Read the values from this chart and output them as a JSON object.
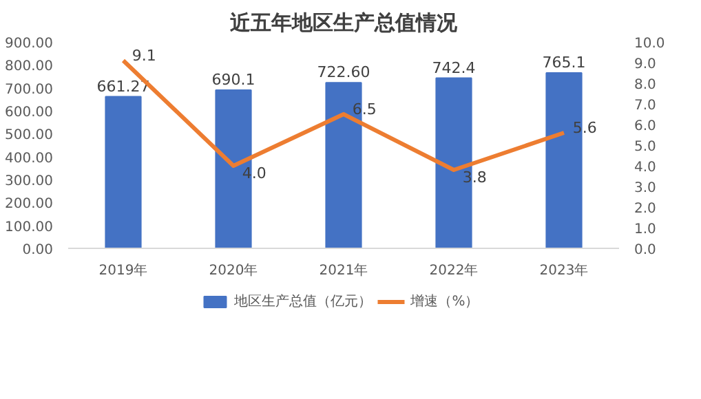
{
  "chart_data": {
    "type": "bar",
    "title": "近五年地区生产总值情况",
    "categories": [
      "2019年",
      "2020年",
      "2021年",
      "2022年",
      "2023年"
    ],
    "series": [
      {
        "name": "地区生产总值（亿元）",
        "color": "#4472c4",
        "values": [
          661.27,
          690.1,
          722.6,
          742.4,
          765.1
        ],
        "value_labels": [
          "661.27",
          "690.1",
          "722.60",
          "742.4",
          "765.1"
        ]
      },
      {
        "name": "增速（%）",
        "type": "line",
        "axis": "y2",
        "color": "#ed7d31",
        "values": [
          9.1,
          4.0,
          6.5,
          3.8,
          5.6
        ],
        "value_labels": [
          "9.1",
          "4.0",
          "6.5",
          "3.8",
          "5.6"
        ]
      }
    ],
    "ylim": [
      0,
      900
    ],
    "yticks": [
      {
        "value": 0,
        "label": "0.00"
      },
      {
        "value": 100,
        "label": "100.00"
      },
      {
        "value": 200,
        "label": "200.00"
      },
      {
        "value": 300,
        "label": "300.00"
      },
      {
        "value": 400,
        "label": "400.00"
      },
      {
        "value": 500,
        "label": "500.00"
      },
      {
        "value": 600,
        "label": "600.00"
      },
      {
        "value": 700,
        "label": "700.00"
      },
      {
        "value": 800,
        "label": "800.00"
      },
      {
        "value": 900,
        "label": "900.00"
      }
    ],
    "y2lim": [
      0,
      10
    ],
    "y2ticks": [
      {
        "value": 0,
        "label": "0.0"
      },
      {
        "value": 1,
        "label": "1.0"
      },
      {
        "value": 2,
        "label": "2.0"
      },
      {
        "value": 3,
        "label": "3.0"
      },
      {
        "value": 4,
        "label": "4.0"
      },
      {
        "value": 5,
        "label": "5.0"
      },
      {
        "value": 6,
        "label": "6.0"
      },
      {
        "value": 7,
        "label": "7.0"
      },
      {
        "value": 8,
        "label": "8.0"
      },
      {
        "value": 9,
        "label": "9.0"
      },
      {
        "value": 10,
        "label": "10.0"
      }
    ],
    "grid": false,
    "legend": "bottom",
    "marker": "none",
    "line_style": "solid"
  }
}
